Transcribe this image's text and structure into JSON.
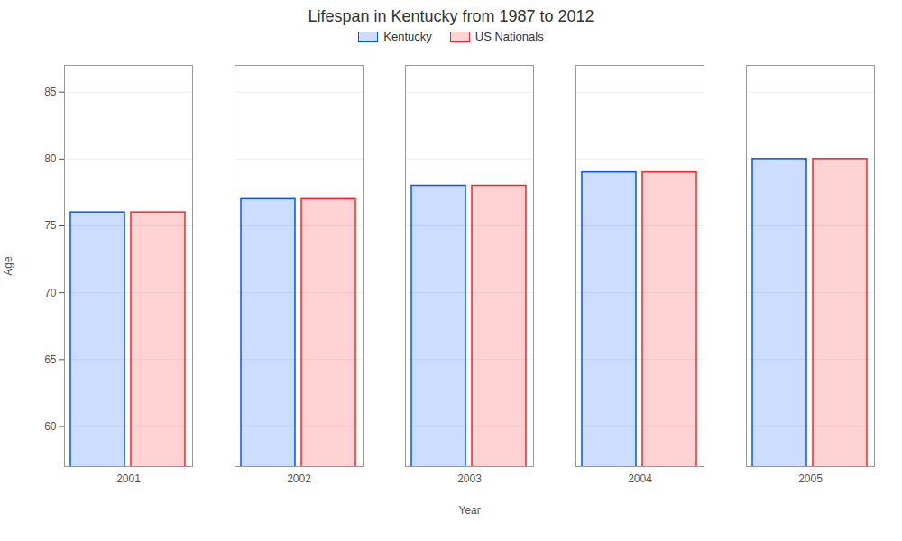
{
  "chart_data": {
    "type": "bar",
    "title": "Lifespan in Kentucky from 1987 to 2012",
    "xlabel": "Year",
    "ylabel": "Age",
    "categories": [
      "2001",
      "2002",
      "2003",
      "2004",
      "2005"
    ],
    "series": [
      {
        "name": "Kentucky",
        "color": "#0055ff",
        "values": [
          76,
          77,
          78,
          79,
          80
        ]
      },
      {
        "name": "US Nationals",
        "color": "#ff2222",
        "values": [
          76,
          77,
          78,
          79,
          80
        ]
      }
    ],
    "ylim": [
      57,
      87
    ],
    "yticks": [
      60,
      65,
      70,
      75,
      80,
      85
    ],
    "grid": true,
    "legend": "top"
  }
}
